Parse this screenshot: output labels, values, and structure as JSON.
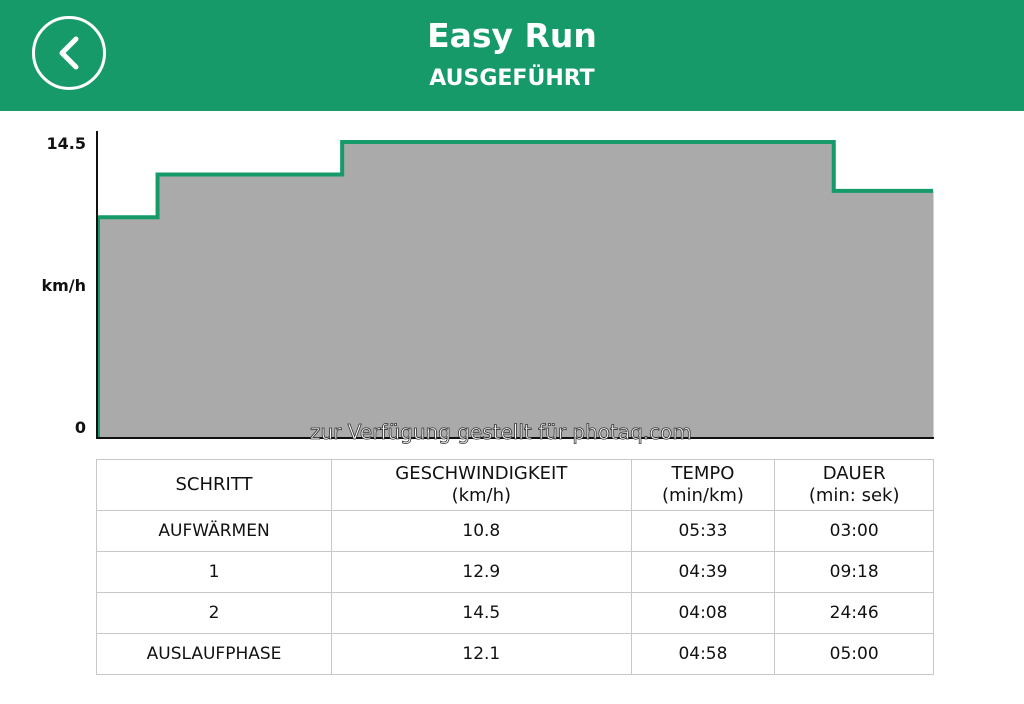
{
  "header": {
    "title": "Easy Run",
    "subtitle": "AUSGEFÜHRT",
    "back_icon": "chevron-left-icon",
    "background": "#169a6a"
  },
  "chart_data": {
    "type": "area",
    "step": true,
    "ylabel": "km/h",
    "yticks": [
      "14.5",
      "0"
    ],
    "ylim": [
      0,
      14.5
    ],
    "xunit": "min",
    "segments": [
      {
        "step": "AUFWÄRMEN",
        "duration_min": 3.0,
        "speed": 10.8
      },
      {
        "step": "1",
        "duration_min": 9.3,
        "speed": 12.9
      },
      {
        "step": "2",
        "duration_min": 24.767,
        "speed": 14.5
      },
      {
        "step": "AUSLAUFPHASE",
        "duration_min": 5.0,
        "speed": 12.1
      }
    ],
    "line_color": "#169a6a",
    "fill_color": "#aaaaaa"
  },
  "watermark": "zur Verfügung gestellt für photaq.com",
  "table": {
    "headers": [
      [
        "SCHRITT",
        ""
      ],
      [
        "GESCHWINDIGKEIT",
        "(km/h)"
      ],
      [
        "TEMPO",
        "(min/km)"
      ],
      [
        "DAUER",
        "(min: sek)"
      ]
    ],
    "rows": [
      [
        "AUFWÄRMEN",
        "10.8",
        "05:33",
        "03:00"
      ],
      [
        "1",
        "12.9",
        "04:39",
        "09:18"
      ],
      [
        "2",
        "14.5",
        "04:08",
        "24:46"
      ],
      [
        "AUSLAUFPHASE",
        "12.1",
        "04:58",
        "05:00"
      ]
    ]
  }
}
